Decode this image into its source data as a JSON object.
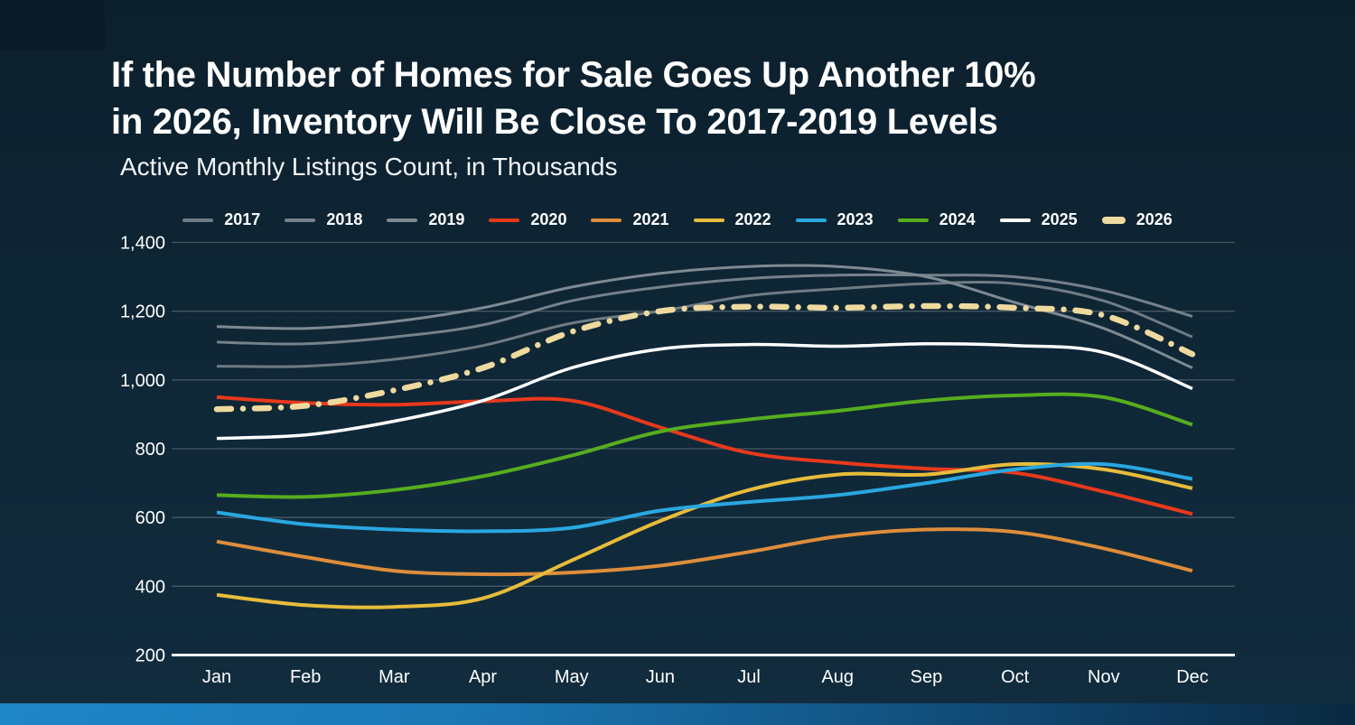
{
  "slide": {
    "title_line1": "If the Number of Homes for Sale Goes Up Another 10%",
    "title_line2": "in 2026, Inventory Will Be Close To 2017-2019 Levels",
    "subtitle": "Active Monthly Listings Count, in Thousands"
  },
  "colors": {
    "background": "#0e2432",
    "corner_square": "#0a1b28",
    "gridline": "#768089",
    "axis_line": "#ffffff",
    "text": "#ffffff",
    "bottom_bar_left": "#1f86c8",
    "bottom_bar_right": "#0a2940"
  },
  "chart_data": {
    "type": "line",
    "title": "If the Number of Homes for Sale Goes Up Another 10% in 2026, Inventory Will Be Close To 2017-2019 Levels",
    "subtitle": "Active Monthly Listings Count, in Thousands",
    "xlabel": "",
    "ylabel": "Active Monthly Listings Count (Thousands)",
    "x_categories": [
      "Jan",
      "Feb",
      "Mar",
      "Apr",
      "May",
      "Jun",
      "Jul",
      "Aug",
      "Sep",
      "Oct",
      "Nov",
      "Dec"
    ],
    "y_ticks": [
      {
        "value": 1400,
        "label": "1,400"
      },
      {
        "value": 1200,
        "label": "1,200"
      },
      {
        "value": 1000,
        "label": "1,000"
      },
      {
        "value": 800,
        "label": "800"
      },
      {
        "value": 600,
        "label": "600"
      },
      {
        "value": 400,
        "label": "400"
      },
      {
        "value": 200,
        "label": "200"
      }
    ],
    "ylim": [
      200,
      1400
    ],
    "grid": true,
    "legend_position": "top",
    "series": [
      {
        "name": "2017",
        "color": "#6f7b84",
        "width": 3,
        "dash": null,
        "values": [
          1040,
          1040,
          1060,
          1100,
          1165,
          1200,
          1245,
          1265,
          1280,
          1280,
          1230,
          1125
        ]
      },
      {
        "name": "2018",
        "color": "#75818b",
        "width": 3,
        "dash": null,
        "values": [
          1110,
          1105,
          1125,
          1160,
          1230,
          1270,
          1295,
          1305,
          1305,
          1300,
          1260,
          1185
        ]
      },
      {
        "name": "2019",
        "color": "#7e8a93",
        "width": 3,
        "dash": null,
        "values": [
          1155,
          1150,
          1170,
          1210,
          1270,
          1310,
          1330,
          1330,
          1300,
          1225,
          1150,
          1035
        ]
      },
      {
        "name": "2020",
        "color": "#e8391c",
        "width": 4,
        "dash": null,
        "values": [
          950,
          933,
          928,
          938,
          940,
          862,
          788,
          760,
          742,
          730,
          675,
          610
        ]
      },
      {
        "name": "2021",
        "color": "#de8d3b",
        "width": 4,
        "dash": null,
        "values": [
          530,
          485,
          445,
          435,
          440,
          460,
          500,
          545,
          565,
          558,
          510,
          445
        ]
      },
      {
        "name": "2022",
        "color": "#e7bc3b",
        "width": 4,
        "dash": null,
        "values": [
          375,
          345,
          340,
          365,
          475,
          590,
          680,
          725,
          725,
          755,
          740,
          685
        ]
      },
      {
        "name": "2023",
        "color": "#2aa7e0",
        "width": 4,
        "dash": null,
        "values": [
          615,
          580,
          565,
          560,
          570,
          620,
          645,
          665,
          700,
          740,
          755,
          712
        ]
      },
      {
        "name": "2024",
        "color": "#56ad1f",
        "width": 4,
        "dash": null,
        "values": [
          665,
          660,
          680,
          720,
          780,
          850,
          885,
          910,
          940,
          955,
          950,
          870
        ]
      },
      {
        "name": "2025",
        "color": "#ffffff",
        "width": 3.5,
        "dash": null,
        "values": [
          830,
          840,
          880,
          940,
          1035,
          1090,
          1103,
          1098,
          1105,
          1100,
          1080,
          975
        ]
      },
      {
        "name": "2026",
        "color": "#eeda9f",
        "width": 6.5,
        "dash": "16 13 0.01 13",
        "values": [
          915,
          925,
          970,
          1035,
          1140,
          1200,
          1213,
          1210,
          1215,
          1210,
          1188,
          1075
        ]
      }
    ]
  }
}
